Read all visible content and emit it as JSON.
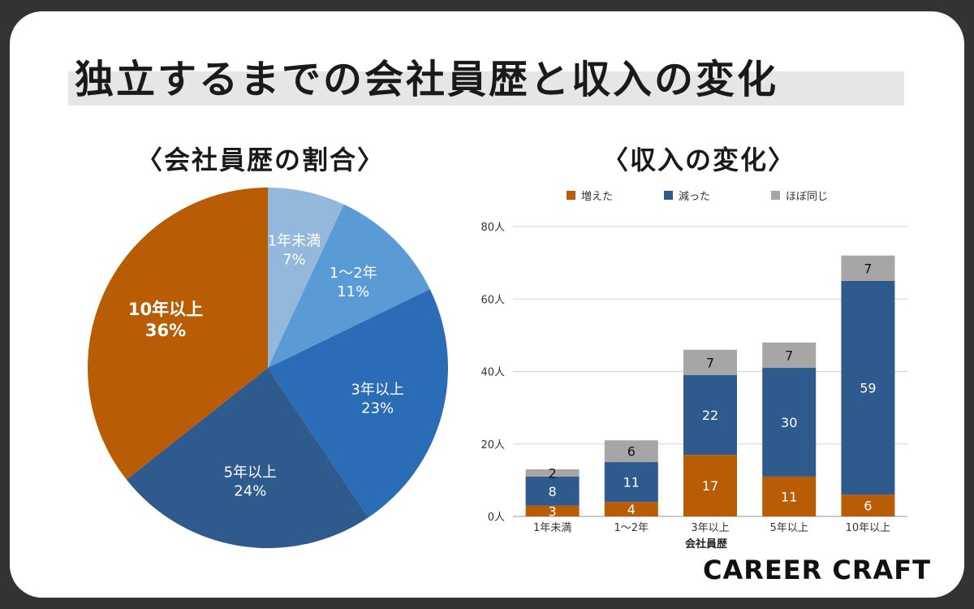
{
  "title": "独立するまでの会社員歴と収入の変化",
  "brand": "CAREER CRAFT",
  "colors": {
    "background": "#333333",
    "card": "#ffffff",
    "orange": "#b85c06",
    "dark_blue": "#2e5a8e",
    "gray": "#a6a6a6",
    "pie": [
      "#94b8dc",
      "#5b9bd5",
      "#2a6cb5",
      "#2e5a8e",
      "#b85c06"
    ]
  },
  "chart_data": [
    {
      "type": "pie",
      "title": "〈会社員歴の割合〉",
      "categories": [
        "1年未満",
        "1〜2年",
        "3年以上",
        "5年以上",
        "10年以上"
      ],
      "values": [
        7,
        11,
        23,
        24,
        36
      ],
      "value_labels": [
        "7%",
        "11%",
        "23%",
        "24%",
        "36%"
      ]
    },
    {
      "type": "bar",
      "stacked": true,
      "title": "〈収入の変化〉",
      "categories": [
        "1年未満",
        "1〜2年",
        "3年以上",
        "5年以上",
        "10年以上"
      ],
      "xlabel": "会社員歴",
      "ylabel": "",
      "ylim": [
        0,
        80
      ],
      "yticks": [
        0,
        20,
        40,
        60,
        80
      ],
      "ytick_labels": [
        "0人",
        "20人",
        "40人",
        "60人",
        "80人"
      ],
      "grid": true,
      "legend": "top",
      "series": [
        {
          "name": "増えた",
          "values": [
            3,
            4,
            17,
            11,
            6
          ],
          "color": "#b85c06"
        },
        {
          "name": "減った",
          "values": [
            8,
            11,
            22,
            30,
            59
          ],
          "color": "#2e5a8e"
        },
        {
          "name": "ほぼ同じ",
          "values": [
            2,
            6,
            7,
            7,
            7
          ],
          "color": "#a6a6a6"
        }
      ]
    }
  ]
}
